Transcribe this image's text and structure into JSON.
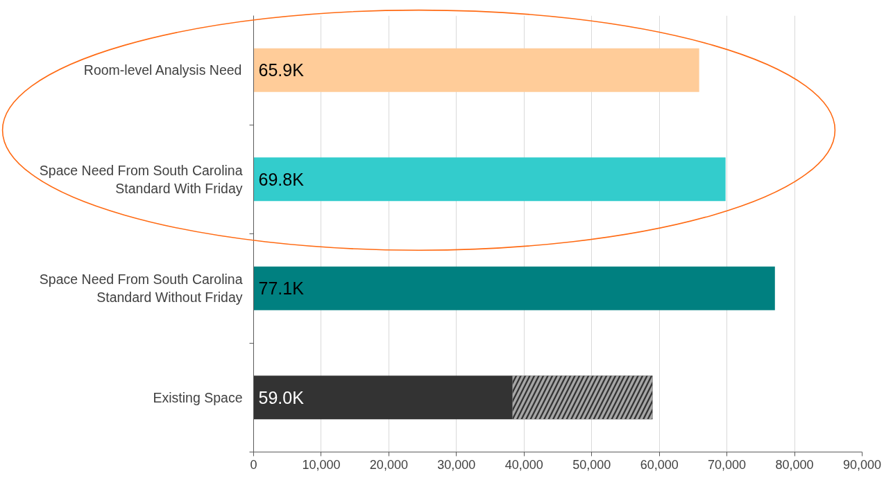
{
  "chart_data": {
    "type": "bar",
    "orientation": "horizontal",
    "stacked": true,
    "categories": [
      "Room-level Analysis Need",
      "Space Need From South Carolina Standard With Friday",
      "Space Need From South Carolina Standard Without Friday",
      "Existing Space"
    ],
    "series": [
      {
        "colors": [
          "#ffcc99",
          "#33cccc",
          "#008080",
          "#333333"
        ],
        "values": [
          65900,
          69800,
          77100,
          38300
        ]
      },
      {
        "color": "#333333",
        "values": [
          null,
          null,
          null,
          20700
        ]
      }
    ],
    "totals": [
      "65.9K",
      "69.8K",
      "77.1K",
      "59.0K"
    ],
    "xlim": [
      0,
      90000
    ],
    "xticks": [
      0,
      {
        "value": 10000,
        "label": "10,000"
      },
      {
        "value": 20000,
        "label": "20,000"
      },
      {
        "value": 30000,
        "label": "30,000"
      },
      {
        "value": 40000,
        "label": "40,000"
      },
      {
        "value": 50000,
        "label": "50,000"
      },
      {
        "value": 60000,
        "label": "60,000"
      },
      {
        "value": 70000,
        "label": "70,000"
      },
      {
        "value": 80000,
        "label": "80,000"
      },
      {
        "value": 90000,
        "label": "90,000"
      }
    ],
    "grid": "x"
  }
}
